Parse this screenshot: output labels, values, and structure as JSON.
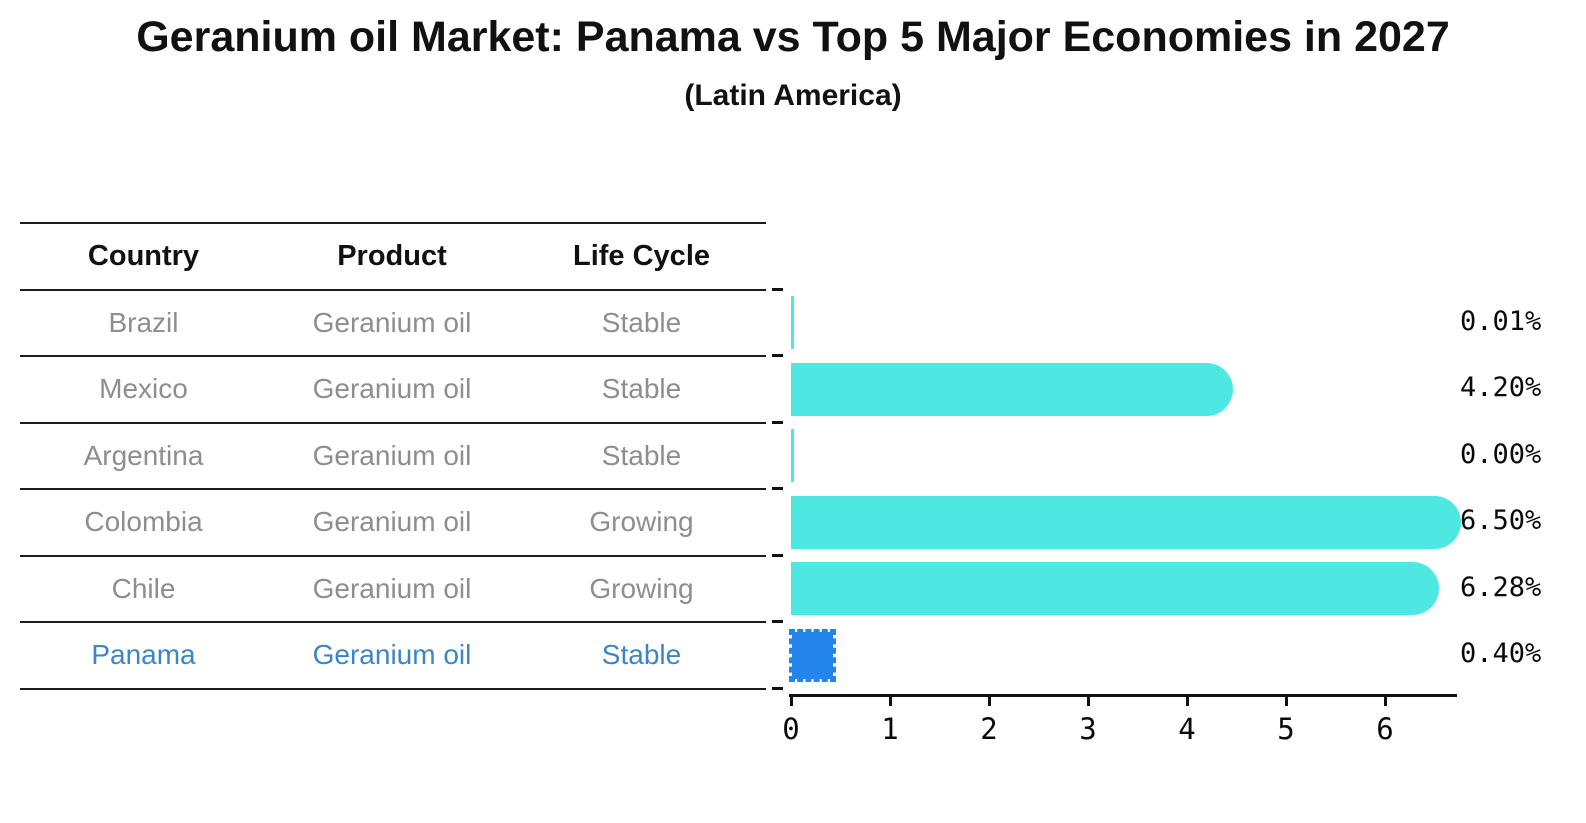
{
  "title": "Geranium oil Market: Panama vs Top 5 Major Economies in 2027",
  "subtitle": "(Latin America)",
  "table": {
    "headers": [
      "Country",
      "Product",
      "Life Cycle"
    ],
    "rows": [
      {
        "country": "Brazil",
        "product": "Geranium oil",
        "life_cycle": "Stable",
        "highlight": false
      },
      {
        "country": "Mexico",
        "product": "Geranium oil",
        "life_cycle": "Stable",
        "highlight": false
      },
      {
        "country": "Argentina",
        "product": "Geranium oil",
        "life_cycle": "Stable",
        "highlight": false
      },
      {
        "country": "Colombia",
        "product": "Geranium oil",
        "life_cycle": "Growing",
        "highlight": false
      },
      {
        "country": "Chile",
        "product": "Geranium oil",
        "life_cycle": "Growing",
        "highlight": false
      },
      {
        "country": "Panama",
        "product": "Geranium oil",
        "life_cycle": "Stable",
        "highlight": true
      }
    ]
  },
  "chart_data": {
    "type": "bar",
    "orientation": "horizontal",
    "title": "Geranium oil Market: Panama vs Top 5 Major Economies in 2027",
    "subtitle": "(Latin America)",
    "categories": [
      "Brazil",
      "Mexico",
      "Argentina",
      "Colombia",
      "Chile",
      "Panama"
    ],
    "values": [
      0.01,
      4.2,
      0.0,
      6.5,
      6.28,
      0.4
    ],
    "value_labels": [
      "0.01%",
      "4.20%",
      "0.00%",
      "6.50%",
      "6.28%",
      "0.40%"
    ],
    "x_ticks": [
      "0",
      "1",
      "2",
      "3",
      "4",
      "5",
      "6"
    ],
    "xlim": [
      0,
      6.75
    ],
    "grid": false,
    "legend": "none",
    "bar_color": "#4DE8E2",
    "highlight_color": "#2385EA",
    "highlight_index": 5
  },
  "colors": {
    "background": "#ffffff",
    "text": "#111111",
    "muted_text": "#8e8e8e",
    "highlight_text": "#3d85c6",
    "line": "#1c1c1c"
  }
}
